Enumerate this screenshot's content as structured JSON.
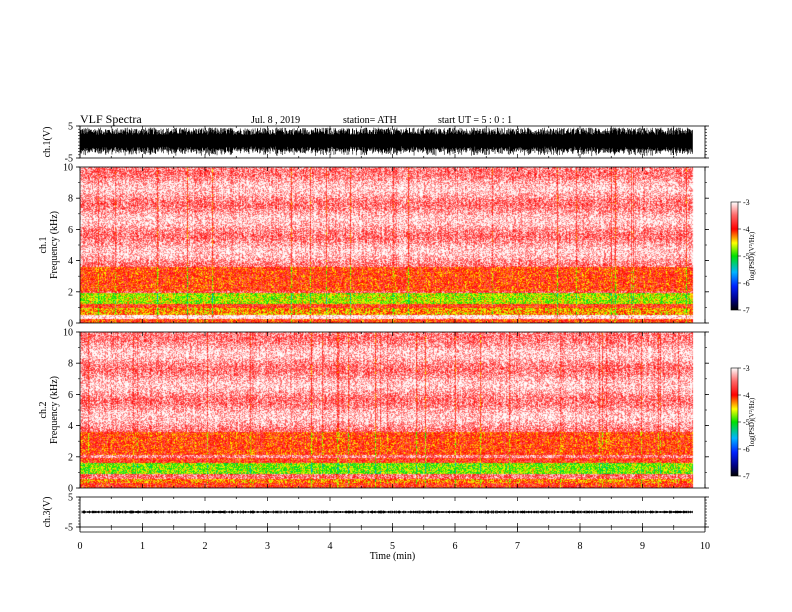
{
  "header": {
    "title": "VLF  Spectra",
    "date": "Jul.  8  , 2019",
    "station": "station= ATH",
    "start_ut": "start  UT  =    5  : 0   : 1"
  },
  "chart_data": [
    {
      "type": "line",
      "id": "ch1-waveform",
      "ylabel": "ch.1(V)",
      "ylim": [
        -5,
        5
      ],
      "yticks": [
        "5",
        "-5"
      ],
      "xlim": [
        0,
        10
      ],
      "data_end_min": 9.8,
      "amplitude_range": [
        -4.5,
        4.5
      ],
      "color": "#000000"
    },
    {
      "type": "heatmap",
      "id": "ch1-spectrogram",
      "ylabel_line1": "ch.1",
      "ylabel_line2": "Frequency  (kHz)",
      "ylim": [
        0,
        10
      ],
      "yticks": [
        "0",
        "2",
        "4",
        "6",
        "8",
        "10"
      ],
      "xlim": [
        0,
        10
      ],
      "data_end_min": 9.8,
      "colorbar": {
        "label": "log(PSD)(V²/Hz)",
        "range": [
          -7,
          -3
        ],
        "ticks": [
          "-3",
          "-4",
          "-5",
          "-6",
          "-7"
        ]
      },
      "bands": [
        {
          "f0": 0.0,
          "f1": 0.25,
          "level": -4.0
        },
        {
          "f0": 0.25,
          "f1": 0.5,
          "level": -3.0
        },
        {
          "f0": 0.5,
          "f1": 0.95,
          "level": -4.3
        },
        {
          "f0": 0.95,
          "f1": 1.2,
          "level": -3.9
        },
        {
          "f0": 1.2,
          "f1": 1.9,
          "level": -4.65
        },
        {
          "f0": 1.9,
          "f1": 2.05,
          "level": -3.6
        },
        {
          "f0": 2.05,
          "f1": 3.6,
          "level": -4.0
        },
        {
          "f0": 3.6,
          "f1": 10.0,
          "level": -3.3
        }
      ]
    },
    {
      "type": "heatmap",
      "id": "ch2-spectrogram",
      "ylabel_line1": "ch.2",
      "ylabel_line2": "Frequency  (kHz)",
      "ylim": [
        0,
        10
      ],
      "yticks": [
        "0",
        "2",
        "4",
        "6",
        "8",
        "10"
      ],
      "xlim": [
        0,
        10
      ],
      "data_end_min": 9.8,
      "colorbar": {
        "label": "log(PSD)(V²/Hz)",
        "range": [
          -7,
          -3
        ],
        "ticks": [
          "-3",
          "-4",
          "-5",
          "-6",
          "-7"
        ]
      },
      "bands": [
        {
          "f0": 0.0,
          "f1": 0.3,
          "level": -3.9
        },
        {
          "f0": 0.3,
          "f1": 0.6,
          "level": -4.2
        },
        {
          "f0": 0.6,
          "f1": 0.9,
          "level": -3.5
        },
        {
          "f0": 0.9,
          "f1": 1.6,
          "level": -4.75
        },
        {
          "f0": 1.6,
          "f1": 1.9,
          "level": -3.9
        },
        {
          "f0": 1.9,
          "f1": 2.1,
          "level": -3.4
        },
        {
          "f0": 2.1,
          "f1": 3.6,
          "level": -4.0
        },
        {
          "f0": 3.6,
          "f1": 10.0,
          "level": -3.3
        }
      ]
    },
    {
      "type": "line",
      "id": "ch3-waveform",
      "ylabel": "ch.3(V)",
      "ylim": [
        -5,
        5
      ],
      "yticks": [
        "5",
        "-5"
      ],
      "xlim": [
        0,
        10
      ],
      "data_end_min": 9.8,
      "offset": 0.0,
      "amplitude_range": [
        -0.5,
        0.5
      ],
      "color": "#000000"
    }
  ],
  "xaxis": {
    "label": "Time  (min)",
    "ticks": [
      "0",
      "1",
      "2",
      "3",
      "4",
      "5",
      "6",
      "7",
      "8",
      "9",
      "10"
    ]
  }
}
